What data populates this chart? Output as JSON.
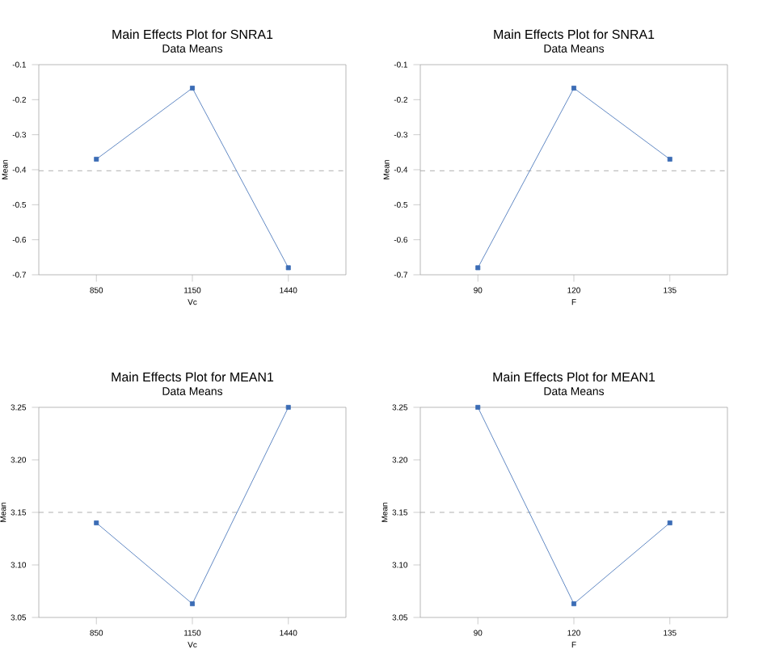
{
  "chart_data": [
    {
      "type": "line",
      "title": "Main Effects Plot for SNRA1",
      "subtitle": "Data Means",
      "xlabel": "Vc",
      "ylabel": "Mean",
      "categories": [
        "850",
        "1150",
        "1440"
      ],
      "series": [
        {
          "color": "#3b6cb5",
          "values": [
            -0.37,
            -0.167,
            -0.68
          ]
        }
      ],
      "ylim": [
        -0.7,
        -0.1
      ],
      "yticks": [
        -0.7,
        -0.6,
        -0.5,
        -0.4,
        -0.3,
        -0.2,
        -0.1
      ],
      "ref_lines": [
        {
          "axis": "y",
          "value": -0.403,
          "color": "#9a9a9a",
          "line_style": "dashed"
        }
      ],
      "marker": "square"
    },
    {
      "type": "line",
      "title": "Main Effects Plot for SNRA1",
      "subtitle": "Data Means",
      "xlabel": "F",
      "ylabel": "Mean",
      "categories": [
        "90",
        "120",
        "135"
      ],
      "series": [
        {
          "color": "#3b6cb5",
          "values": [
            -0.68,
            -0.167,
            -0.37
          ]
        }
      ],
      "ylim": [
        -0.7,
        -0.1
      ],
      "yticks": [
        -0.7,
        -0.6,
        -0.5,
        -0.4,
        -0.3,
        -0.2,
        -0.1
      ],
      "ref_lines": [
        {
          "axis": "y",
          "value": -0.403,
          "color": "#9a9a9a",
          "line_style": "dashed"
        }
      ],
      "marker": "square"
    },
    {
      "type": "line",
      "title": "Main Effects Plot for MEAN1",
      "subtitle": "Data Means",
      "xlabel": "Vc",
      "ylabel": "Mean",
      "categories": [
        "850",
        "1150",
        "1440"
      ],
      "series": [
        {
          "color": "#3b6cb5",
          "values": [
            3.14,
            3.063,
            3.25
          ]
        }
      ],
      "ylim": [
        3.05,
        3.25
      ],
      "yticks": [
        {
          "value": 3.05,
          "label": "3.05"
        },
        {
          "value": 3.1,
          "label": "3.10"
        },
        {
          "value": 3.15,
          "label": "3.15"
        },
        {
          "value": 3.2,
          "label": "3.20"
        },
        {
          "value": 3.25,
          "label": "3.25"
        }
      ],
      "ref_lines": [
        {
          "axis": "y",
          "value": 3.15,
          "color": "#9a9a9a",
          "line_style": "dashed"
        }
      ],
      "marker": "square"
    },
    {
      "type": "line",
      "title": "Main Effects Plot for MEAN1",
      "subtitle": "Data Means",
      "xlabel": "F",
      "ylabel": "Mean",
      "categories": [
        "90",
        "120",
        "135"
      ],
      "series": [
        {
          "color": "#3b6cb5",
          "values": [
            3.25,
            3.063,
            3.14
          ]
        }
      ],
      "ylim": [
        3.05,
        3.25
      ],
      "yticks": [
        {
          "value": 3.05,
          "label": "3.05"
        },
        {
          "value": 3.1,
          "label": "3.10"
        },
        {
          "value": 3.15,
          "label": "3.15"
        },
        {
          "value": 3.2,
          "label": "3.20"
        },
        {
          "value": 3.25,
          "label": "3.25"
        }
      ],
      "ref_lines": [
        {
          "axis": "y",
          "value": 3.15,
          "color": "#9a9a9a",
          "line_style": "dashed"
        }
      ],
      "marker": "square"
    }
  ]
}
